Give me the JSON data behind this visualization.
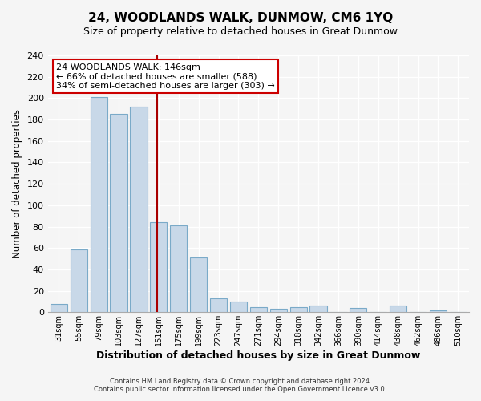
{
  "title": "24, WOODLANDS WALK, DUNMOW, CM6 1YQ",
  "subtitle": "Size of property relative to detached houses in Great Dunmow",
  "xlabel": "Distribution of detached houses by size in Great Dunmow",
  "ylabel": "Number of detached properties",
  "bar_labels": [
    "31sqm",
    "55sqm",
    "79sqm",
    "103sqm",
    "127sqm",
    "151sqm",
    "175sqm",
    "199sqm",
    "223sqm",
    "247sqm",
    "271sqm",
    "294sqm",
    "318sqm",
    "342sqm",
    "366sqm",
    "390sqm",
    "414sqm",
    "438sqm",
    "462sqm",
    "486sqm",
    "510sqm"
  ],
  "bar_values": [
    8,
    59,
    201,
    185,
    192,
    84,
    81,
    51,
    13,
    10,
    5,
    3,
    5,
    6,
    0,
    4,
    0,
    6,
    0,
    2,
    0
  ],
  "bar_color": "#c8d8e8",
  "bar_edge_color": "#7aaac8",
  "ylim": [
    0,
    240
  ],
  "yticks": [
    0,
    20,
    40,
    60,
    80,
    100,
    120,
    140,
    160,
    180,
    200,
    220,
    240
  ],
  "property_label": "24 WOODLANDS WALK: 146sqm",
  "annotation_line1": "← 66% of detached houses are smaller (588)",
  "annotation_line2": "34% of semi-detached houses are larger (303) →",
  "vline_color": "#aa0000",
  "vline_bin_index": 5,
  "annotation_box_color": "#ffffff",
  "annotation_box_edge": "#cc0000",
  "footer1": "Contains HM Land Registry data © Crown copyright and database right 2024.",
  "footer2": "Contains public sector information licensed under the Open Government Licence v3.0.",
  "background_color": "#f5f5f5"
}
